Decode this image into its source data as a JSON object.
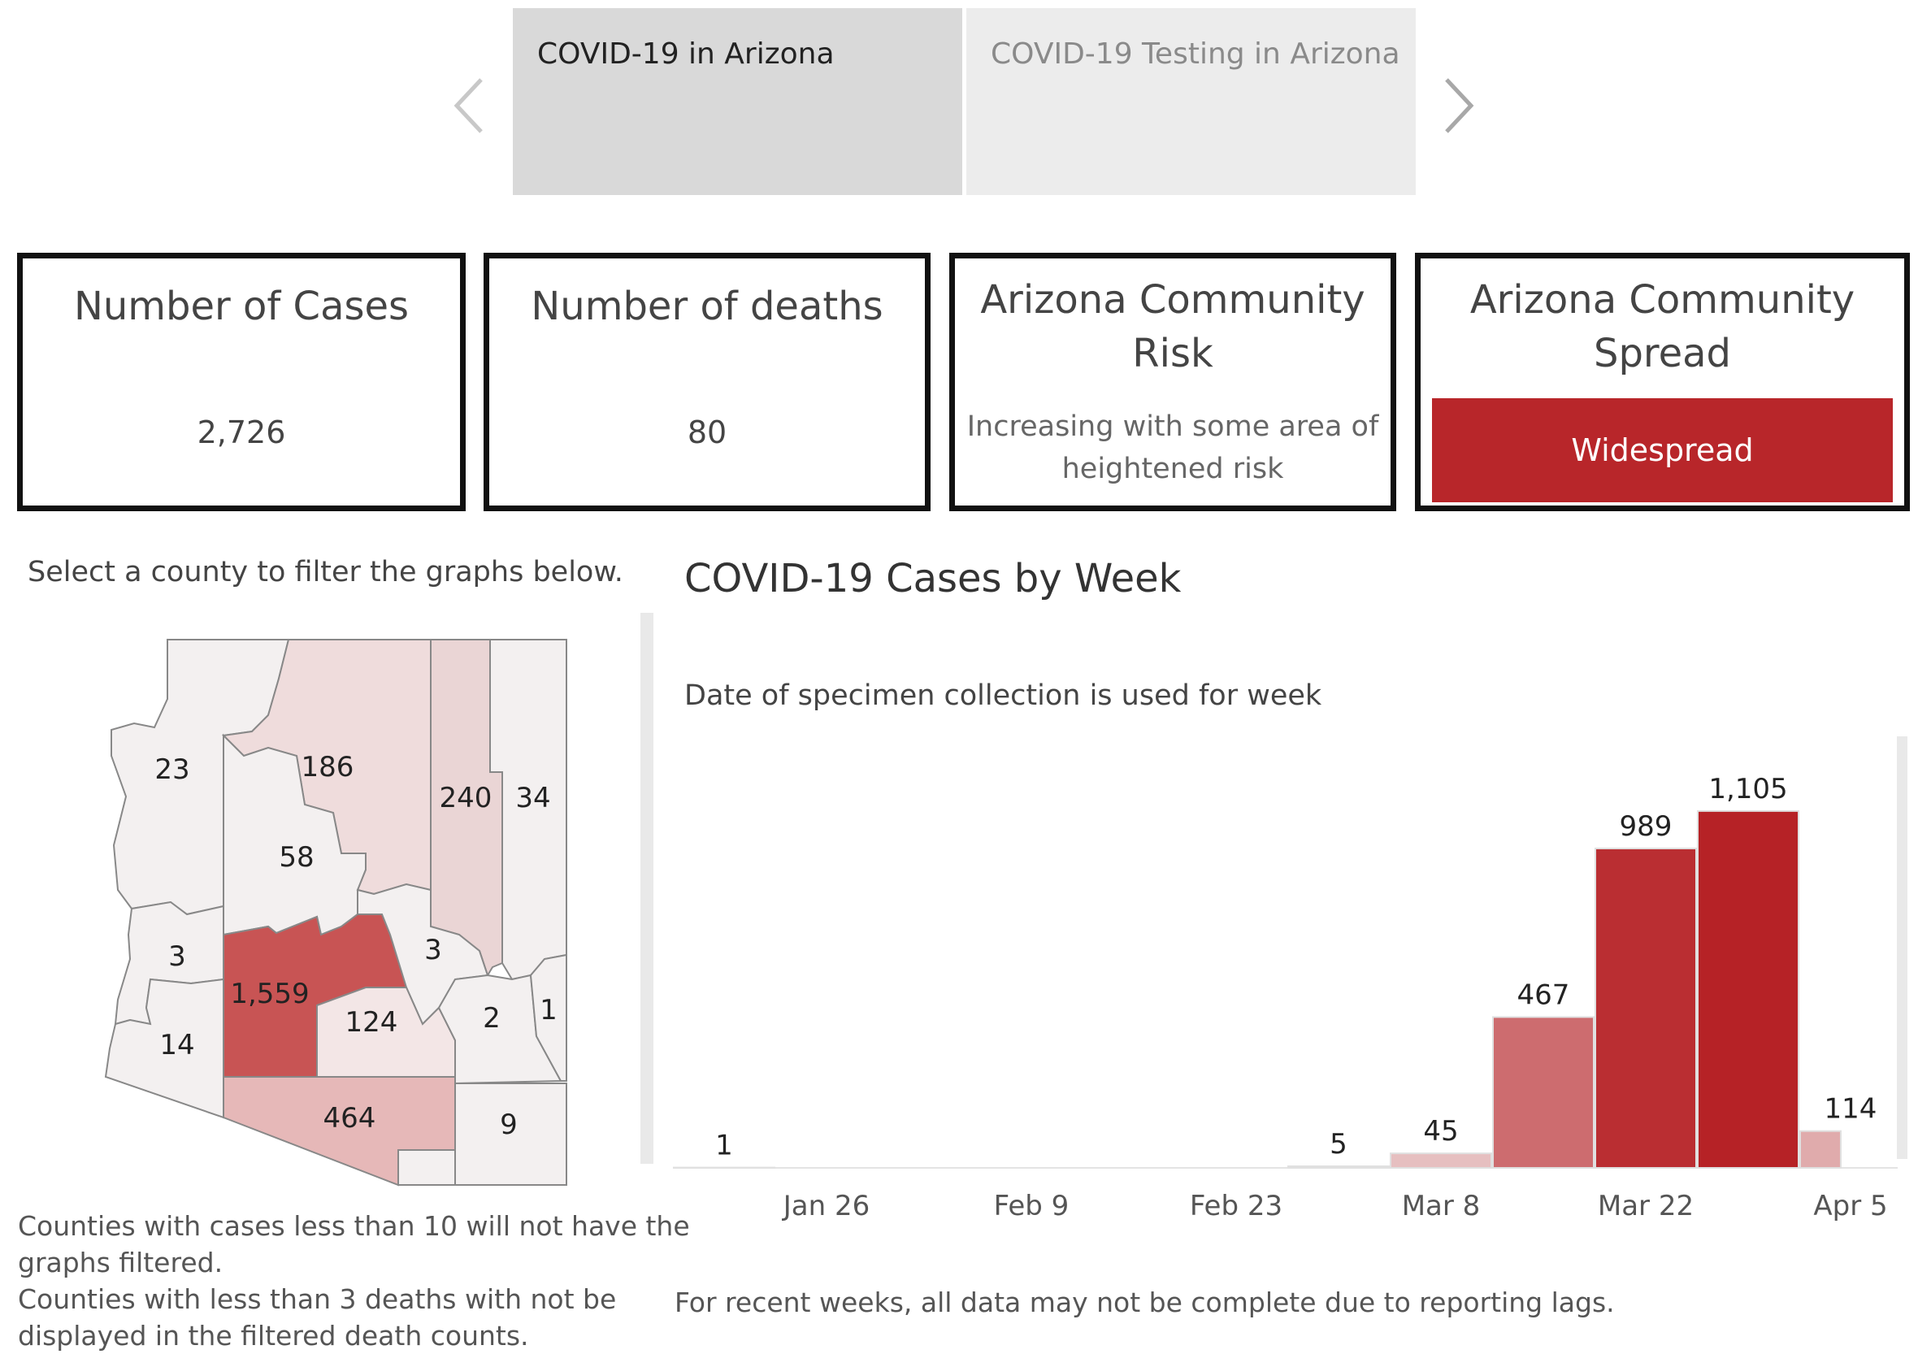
{
  "tabs": [
    {
      "label": "COVID-19 in Arizona",
      "active": true
    },
    {
      "label": "COVID-19 Testing in Arizona",
      "active": false
    }
  ],
  "cards": {
    "cases": {
      "title": "Number of Cases",
      "value": "2,726"
    },
    "deaths": {
      "title": "Number of deaths",
      "value": "80"
    },
    "risk": {
      "title_line1": "Arizona Community",
      "title_line2": "Risk",
      "desc_line1": "Increasing with some area of",
      "desc_line2": "heightened risk"
    },
    "spread": {
      "title_line1": "Arizona Community",
      "title_line2": "Spread",
      "value": "Widespread",
      "color": "#b8262a"
    }
  },
  "map": {
    "instruction": "Select a county to filter the graphs below.",
    "counties": [
      {
        "label": "23",
        "value": 23
      },
      {
        "label": "186",
        "value": 186
      },
      {
        "label": "240",
        "value": 240
      },
      {
        "label": "34",
        "value": 34
      },
      {
        "label": "58",
        "value": 58
      },
      {
        "label": "3",
        "value": 3
      },
      {
        "label": "1,559",
        "value": 1559
      },
      {
        "label": "3",
        "value": 3
      },
      {
        "label": "124",
        "value": 124
      },
      {
        "label": "2",
        "value": 2
      },
      {
        "label": "1",
        "value": 1
      },
      {
        "label": "14",
        "value": 14
      },
      {
        "label": "464",
        "value": 464
      },
      {
        "label": "9",
        "value": 9
      }
    ],
    "note_line1": "Counties with cases less than 10 will not have the",
    "note_line2": "graphs filtered.",
    "note_line3": "Counties with less than 3 deaths with not be",
    "note_line4": "displayed in the filtered death counts."
  },
  "chart_data": {
    "type": "bar",
    "title": "COVID-19 Cases by Week",
    "subtitle": "Date of specimen collection is used for week",
    "x_ticks": [
      "Jan 26",
      "Feb 9",
      "Feb 23",
      "Mar 8",
      "Mar 22",
      "Apr 5"
    ],
    "categories": [
      "Jan 19",
      "Jan 26",
      "Feb 2",
      "Feb 9",
      "Feb 16",
      "Feb 23",
      "Mar 1",
      "Mar 8",
      "Mar 15",
      "Mar 22",
      "Mar 29",
      "Apr 5"
    ],
    "values": [
      1,
      0,
      0,
      0,
      0,
      0,
      5,
      45,
      467,
      989,
      1105,
      114
    ],
    "value_labels": [
      "1",
      "",
      "",
      "",
      "",
      "",
      "5",
      "45",
      "467",
      "989",
      "1,105",
      "114"
    ],
    "ylim": [
      0,
      1150
    ],
    "footnote": "For recent weeks, all data may not be complete due to reporting lags."
  }
}
